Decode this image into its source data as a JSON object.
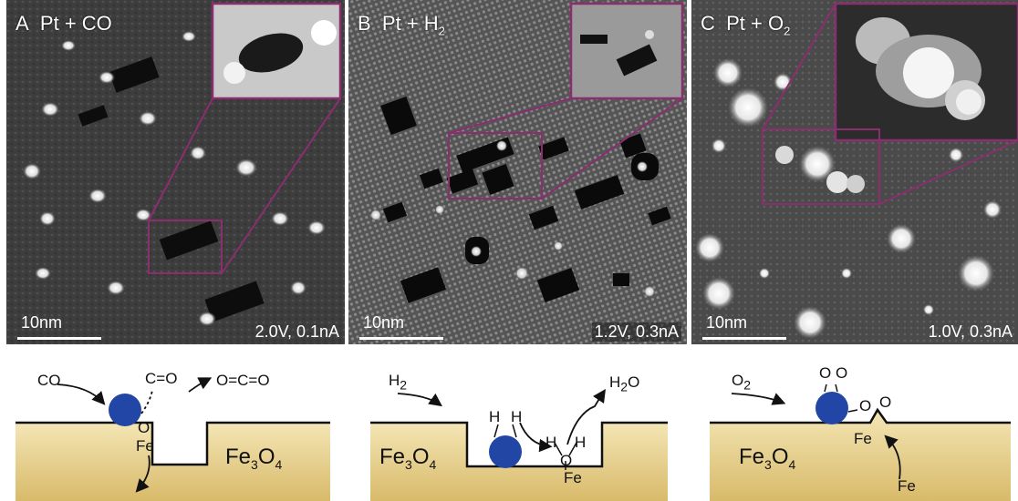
{
  "panels": [
    {
      "letter": "A",
      "reactant": "Pt + CO",
      "params": "2.0V, 0.1nA",
      "scale": "10nm"
    },
    {
      "letter": "B",
      "reactant_base": "Pt + H",
      "reactant_sub": "2",
      "params": "1.2V, 0.3nA",
      "scale": "10nm"
    },
    {
      "letter": "C",
      "reactant_base": "Pt + O",
      "reactant_sub": "2",
      "params": "1.0V, 0.3nA",
      "scale": "10nm"
    }
  ],
  "schemes": {
    "a": {
      "in": "CO",
      "out": "O=C=O",
      "bond": "C=O",
      "o": "O",
      "fe": "Fe",
      "substrate_base": "Fe",
      "substrate_sub1": "3",
      "substrate_mid": "O",
      "substrate_sub2": "4"
    },
    "b": {
      "in_base": "H",
      "in_sub": "2",
      "out_base": "H",
      "out_sub": "2",
      "out_end": "O",
      "h1": "H",
      "h2": "H",
      "h3": "H",
      "h4": "H",
      "o": "O",
      "fe": "Fe",
      "substrate_base": "Fe",
      "substrate_sub1": "3",
      "substrate_mid": "O",
      "substrate_sub2": "4"
    },
    "c": {
      "in_base": "O",
      "in_sub": "2",
      "oo": "O O",
      "o1": "O",
      "o2": "O",
      "fe1": "Fe",
      "fe2": "Fe",
      "substrate_base": "Fe",
      "substrate_sub1": "3",
      "substrate_mid": "O",
      "substrate_sub2": "4"
    }
  },
  "colors": {
    "inset_frame": "#8a2e6f",
    "particle": "#2246a5",
    "substrate_top": "#f4e6b5",
    "substrate_bottom": "#d8ba6a"
  }
}
